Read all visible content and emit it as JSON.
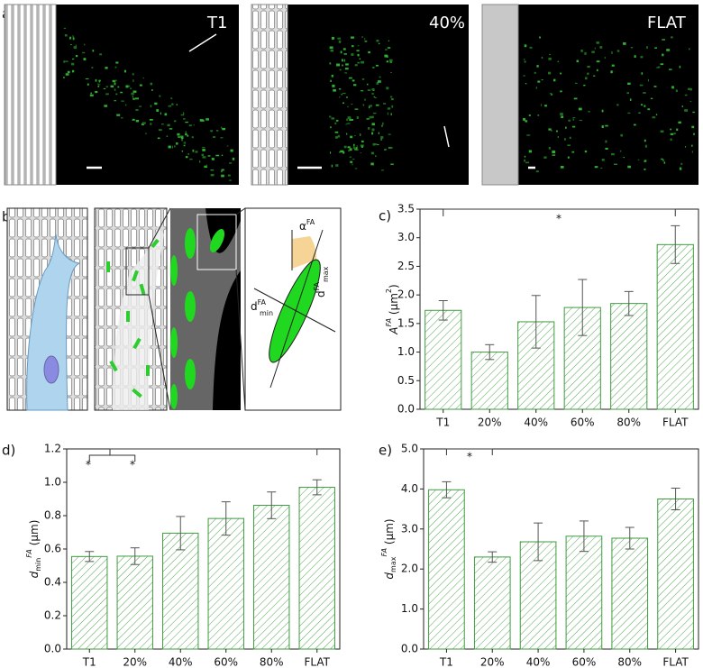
{
  "figure": {
    "panel_a": "a)",
    "panel_b": "b)",
    "image_labels": [
      "T1",
      "40%",
      "FLAT"
    ],
    "diagram_labels": {
      "alpha": {
        "base": "α",
        "sup": "FA"
      },
      "dmin": {
        "base": "d",
        "sup": "FA",
        "sub": "min"
      },
      "dmax": {
        "base": "d",
        "sup": "FA",
        "sub": "max"
      }
    }
  },
  "chart_data": [
    {
      "type": "bar",
      "panel": "c)",
      "color": "#3f9b3f",
      "y_label": {
        "base": "A",
        "sup": "FA",
        "unit": " (μm",
        "unit_sup": "2",
        "close": ")"
      },
      "categories": [
        "T1",
        "20%",
        "40%",
        "60%",
        "80%",
        "FLAT"
      ],
      "values": [
        1.73,
        1.0,
        1.53,
        1.78,
        1.85,
        2.88
      ],
      "errors": [
        0.17,
        0.13,
        0.46,
        0.49,
        0.21,
        0.33
      ],
      "ylim": [
        0,
        3.5
      ],
      "yticks": [
        {
          "value": 0,
          "label": "0.0"
        },
        0.5,
        {
          "value": 1,
          "label": "1.0"
        },
        1.5,
        {
          "value": 2,
          "label": "2.0"
        },
        2.5,
        {
          "value": 3,
          "label": "3.0"
        },
        3.5
      ],
      "annotations": [
        {
          "text": "*"
        }
      ]
    },
    {
      "type": "bar",
      "panel": "d)",
      "color": "#3f9b3f",
      "y_label": {
        "base": "d",
        "sub": "min",
        "sup": "FA",
        "unit": " (μm)"
      },
      "categories": [
        "T1",
        "20%",
        "40%",
        "60%",
        "80%",
        "FLAT"
      ],
      "values": [
        0.555,
        0.557,
        0.695,
        0.783,
        0.862,
        0.97
      ],
      "errors": [
        0.03,
        0.05,
        0.1,
        0.1,
        0.08,
        0.045
      ],
      "ylim": [
        0,
        1.2
      ],
      "yticks": [
        {
          "value": 0,
          "label": "0.0"
        },
        0.2,
        0.4,
        0.6,
        0.8,
        {
          "value": 1,
          "label": "1.0"
        },
        1.2
      ],
      "annotations": [
        {
          "text": "*"
        },
        {
          "text": "*"
        }
      ]
    },
    {
      "type": "bar",
      "panel": "e)",
      "color": "#3f9b3f",
      "y_label": {
        "base": "d",
        "sub": "max",
        "sup": "FA",
        "unit": " (μm)"
      },
      "categories": [
        "T1",
        "20%",
        "40%",
        "60%",
        "80%",
        "FLAT"
      ],
      "values": [
        3.98,
        2.3,
        2.68,
        2.82,
        2.77,
        3.75
      ],
      "errors": [
        0.2,
        0.13,
        0.47,
        0.38,
        0.27,
        0.27
      ],
      "ylim": [
        0,
        5
      ],
      "yticks": [
        {
          "value": 0,
          "label": "0.0"
        },
        {
          "value": 1,
          "label": "1.0"
        },
        {
          "value": 2,
          "label": "2.0"
        },
        {
          "value": 3,
          "label": "3.0"
        },
        {
          "value": 4,
          "label": "4.0"
        },
        {
          "value": 5,
          "label": "5.0"
        }
      ],
      "annotations": [
        {
          "text": "*"
        }
      ]
    }
  ]
}
